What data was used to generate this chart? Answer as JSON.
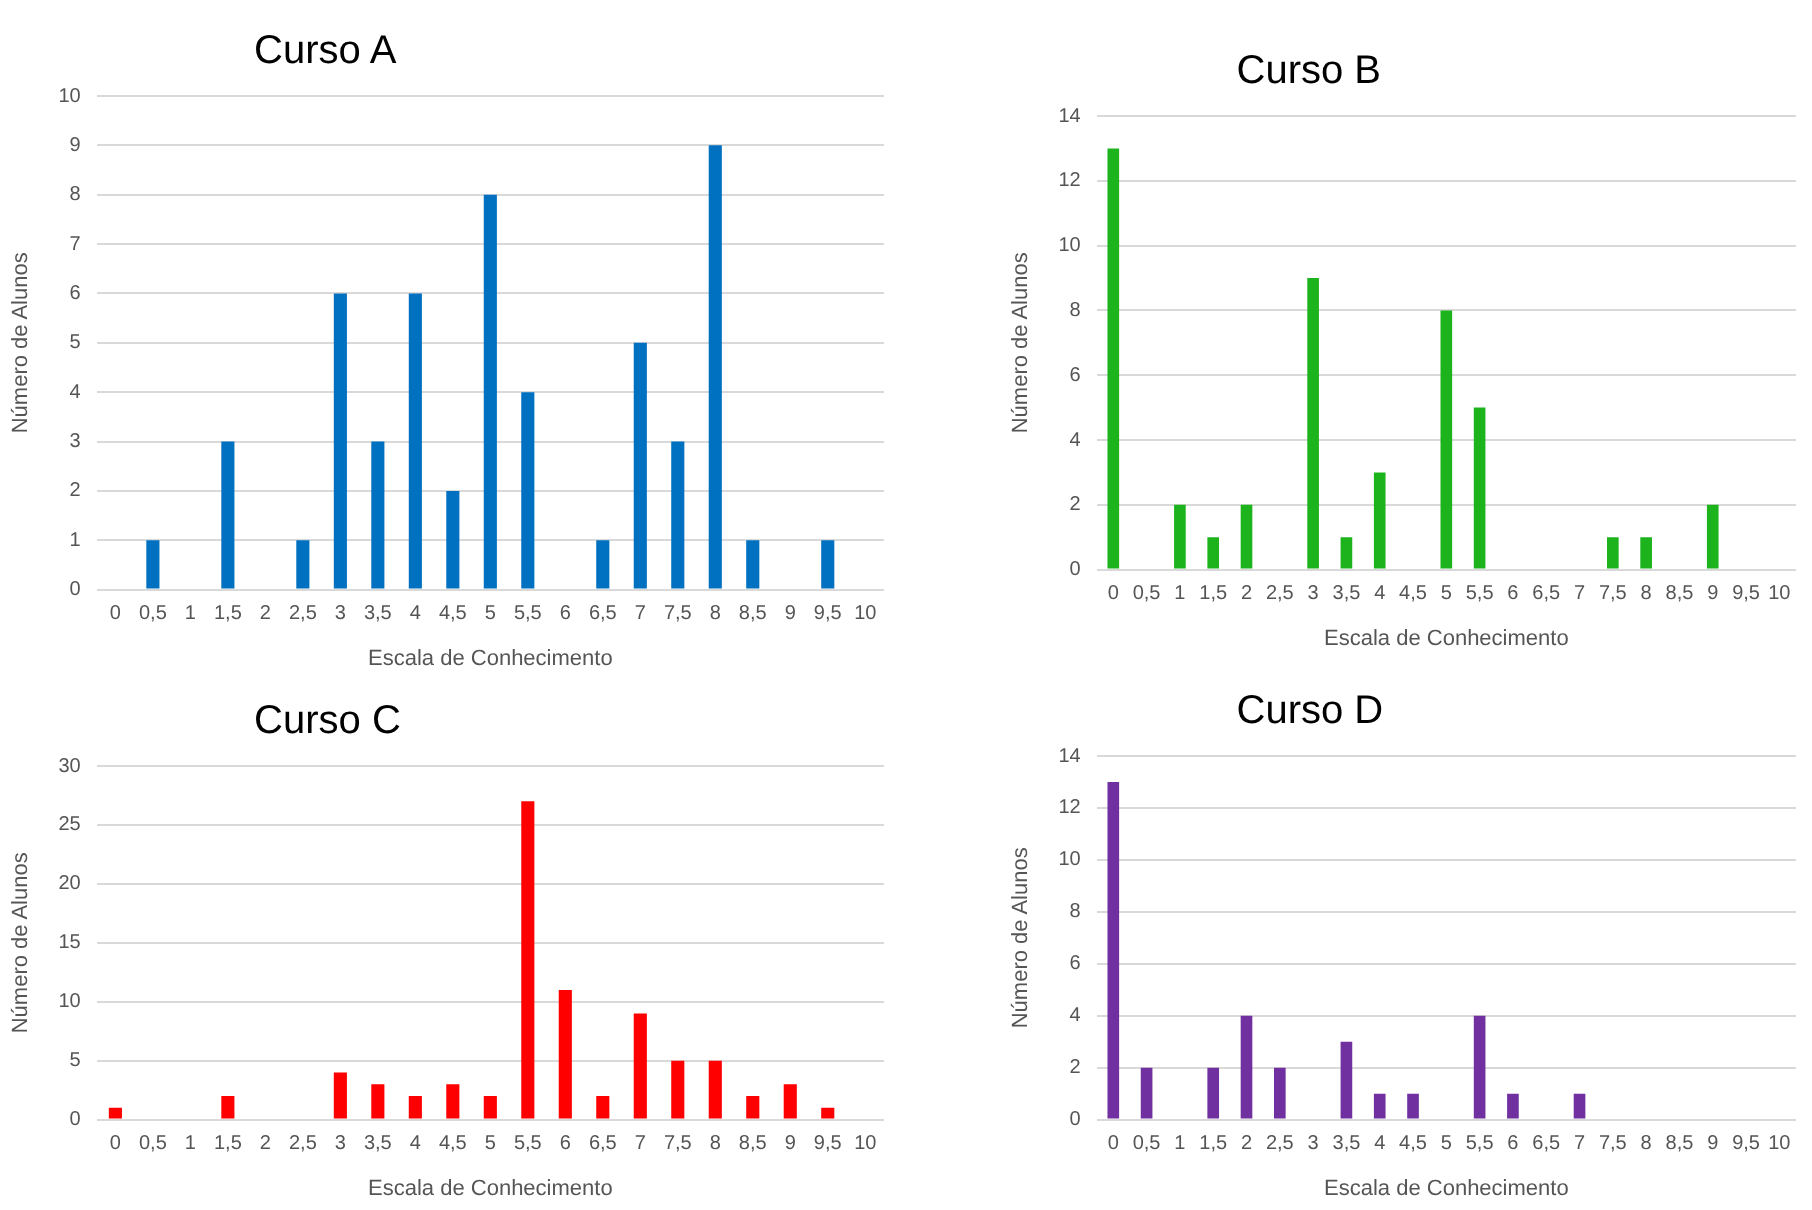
{
  "chart_data": [
    {
      "type": "bar",
      "title": "Curso A",
      "xlabel": "Escala de Conhecimento",
      "ylabel": "Número de Alunos",
      "categories": [
        "0",
        "0,5",
        "1",
        "1,5",
        "2",
        "2,5",
        "3",
        "3,5",
        "4",
        "4,5",
        "5",
        "5,5",
        "6",
        "6,5",
        "7",
        "7,5",
        "8",
        "8,5",
        "9",
        "9,5",
        "10"
      ],
      "values": [
        0,
        1,
        0,
        3,
        0,
        1,
        6,
        3,
        6,
        2,
        8,
        4,
        0,
        1,
        5,
        3,
        9,
        1,
        0,
        1,
        0
      ],
      "color": "#0070c0",
      "ylim": [
        0,
        10
      ],
      "yticks": [
        0,
        1,
        2,
        3,
        4,
        5,
        6,
        7,
        8,
        9,
        10
      ],
      "grid": "y"
    },
    {
      "type": "bar",
      "title": "Curso B",
      "xlabel": "Escala de Conhecimento",
      "ylabel": "Número de Alunos",
      "categories": [
        "0",
        "0,5",
        "1",
        "1,5",
        "2",
        "2,5",
        "3",
        "3,5",
        "4",
        "4,5",
        "5",
        "5,5",
        "6",
        "6,5",
        "7",
        "7,5",
        "8",
        "8,5",
        "9",
        "9,5",
        "10"
      ],
      "values": [
        13,
        0,
        2,
        1,
        2,
        0,
        9,
        1,
        3,
        0,
        8,
        5,
        0,
        0,
        0,
        1,
        1,
        0,
        2,
        0,
        0
      ],
      "color": "#1db31d",
      "ylim": [
        0,
        14
      ],
      "yticks": [
        0,
        2,
        4,
        6,
        8,
        10,
        12,
        14
      ],
      "grid": "y"
    },
    {
      "type": "bar",
      "title": "Curso C",
      "xlabel": "Escala de Conhecimento",
      "ylabel": "Número de Alunos",
      "categories": [
        "0",
        "0,5",
        "1",
        "1,5",
        "2",
        "2,5",
        "3",
        "3,5",
        "4",
        "4,5",
        "5",
        "5,5",
        "6",
        "6,5",
        "7",
        "7,5",
        "8",
        "8,5",
        "9",
        "9,5",
        "10"
      ],
      "values": [
        1,
        0,
        0,
        2,
        0,
        0,
        4,
        3,
        2,
        3,
        2,
        27,
        11,
        2,
        9,
        5,
        5,
        2,
        3,
        1,
        0
      ],
      "color": "#ff0000",
      "ylim": [
        0,
        30
      ],
      "yticks": [
        0,
        5,
        10,
        15,
        20,
        25,
        30
      ],
      "grid": "y"
    },
    {
      "type": "bar",
      "title": "Curso D",
      "xlabel": "Escala de Conhecimento",
      "ylabel": "Número de Alunos",
      "categories": [
        "0",
        "0,5",
        "1",
        "1,5",
        "2",
        "2,5",
        "3",
        "3,5",
        "4",
        "4,5",
        "5",
        "5,5",
        "6",
        "6,5",
        "7",
        "7,5",
        "8",
        "8,5",
        "9",
        "9,5",
        "10"
      ],
      "values": [
        13,
        2,
        0,
        2,
        4,
        2,
        0,
        3,
        1,
        1,
        0,
        4,
        1,
        0,
        1,
        0,
        0,
        0,
        0,
        0,
        0
      ],
      "color": "#7030a0",
      "ylim": [
        0,
        14
      ],
      "yticks": [
        0,
        2,
        4,
        6,
        8,
        10,
        12,
        14
      ],
      "grid": "y"
    }
  ]
}
